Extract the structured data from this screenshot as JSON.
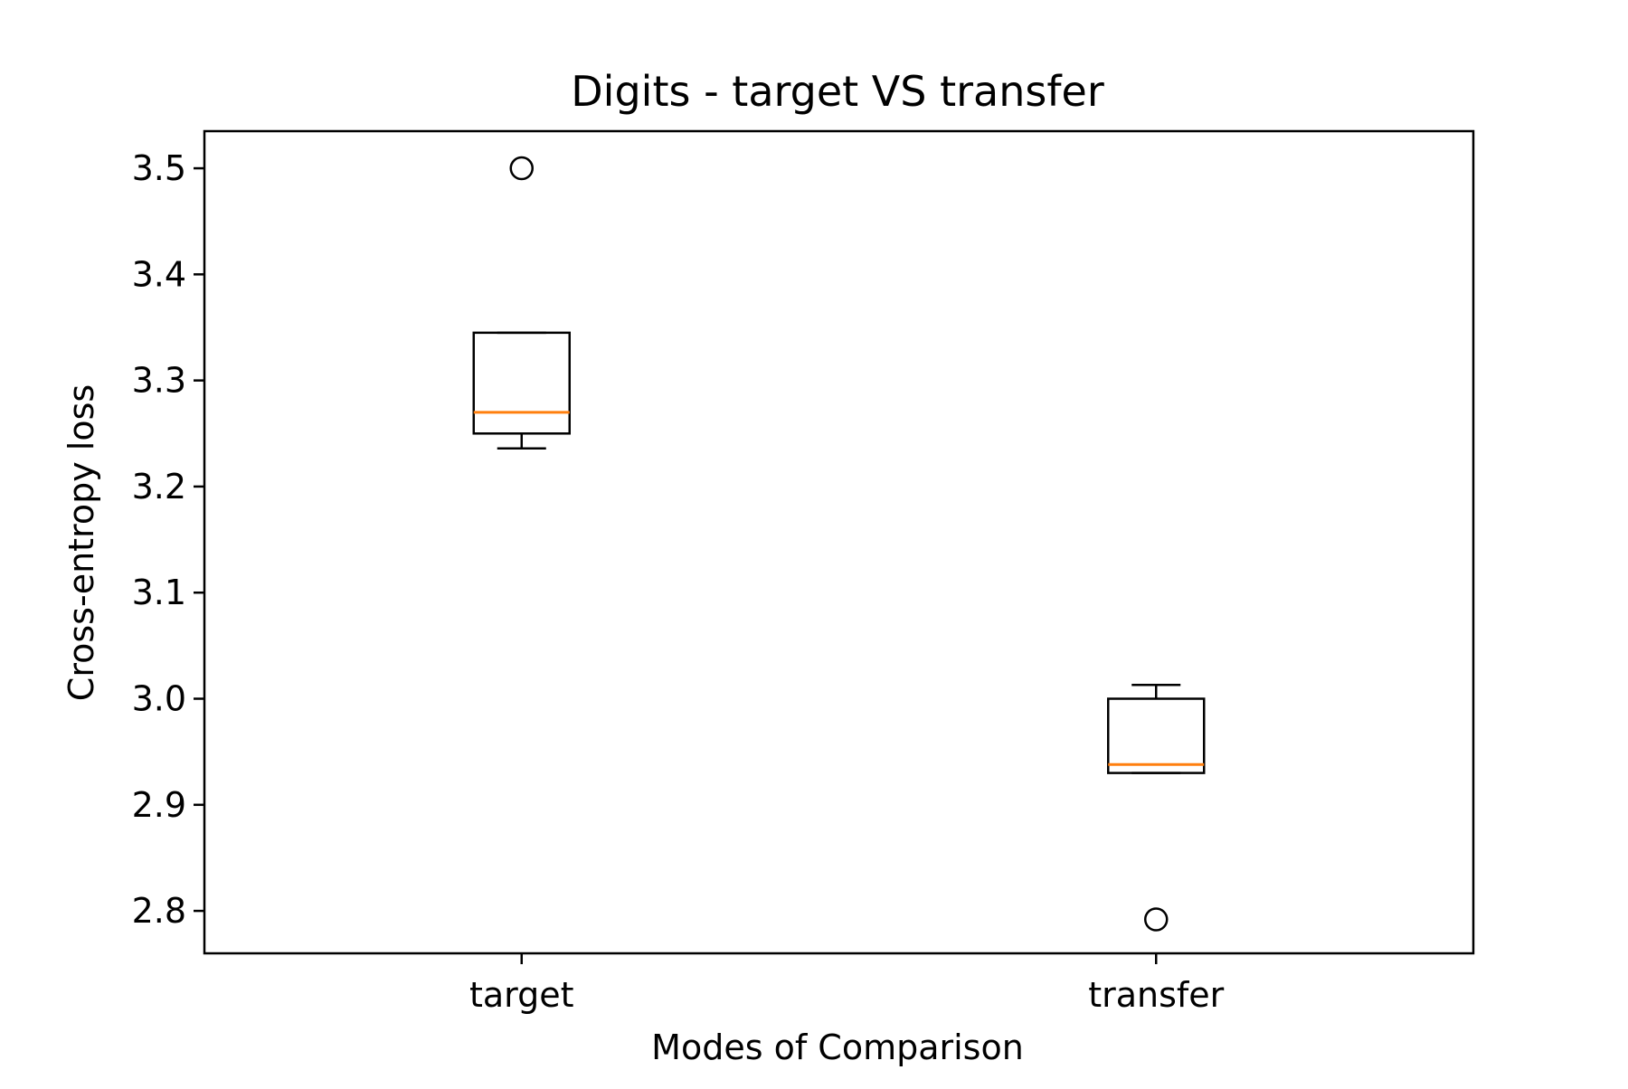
{
  "chart_data": {
    "type": "box",
    "title": "Digits - target VS transfer",
    "xlabel": "Modes of Comparison",
    "ylabel": "Cross-entropy loss",
    "categories": [
      "target",
      "transfer"
    ],
    "ylim": [
      2.76,
      3.535
    ],
    "yticks": [
      "2.8",
      "2.9",
      "3.0",
      "3.1",
      "3.2",
      "3.3",
      "3.4",
      "3.5"
    ],
    "grid": false,
    "boxes": [
      {
        "name": "target",
        "whisker_low": 3.236,
        "q1": 3.25,
        "median": 3.27,
        "q3": 3.345,
        "whisker_high": 3.345,
        "outliers": [
          3.5
        ]
      },
      {
        "name": "transfer",
        "whisker_low": 2.93,
        "q1": 2.93,
        "median": 2.938,
        "q3": 3.0,
        "whisker_high": 3.013,
        "outliers": [
          2.792
        ]
      }
    ],
    "colors": {
      "box": "#000000",
      "median": "#ff7f0e",
      "frame": "#000000"
    }
  }
}
